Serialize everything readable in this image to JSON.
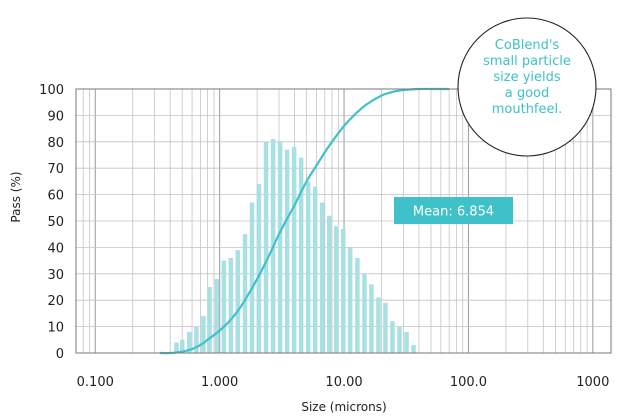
{
  "chart_data": {
    "type": "bar",
    "xlabel": "Size (microns)",
    "ylabel": "Pass (%)",
    "x_scale": "log",
    "xlim": [
      0.07,
      1400
    ],
    "ylim": [
      0,
      100
    ],
    "x_ticks": [
      0.1,
      1,
      10,
      100,
      1000
    ],
    "x_tick_labels": [
      "0.100",
      "1.000",
      "10.00",
      "100.0",
      "1000"
    ],
    "y_ticks": [
      0,
      10,
      20,
      30,
      40,
      50,
      60,
      70,
      80,
      90,
      100
    ],
    "grid": true,
    "accent_color": "#3ec1c8",
    "bar_color": "#a9e0e4",
    "histogram": {
      "x": [
        0.45,
        0.5,
        0.57,
        0.65,
        0.74,
        0.83,
        0.95,
        1.08,
        1.23,
        1.4,
        1.6,
        1.82,
        2.07,
        2.36,
        2.69,
        3.06,
        3.49,
        3.97,
        4.52,
        5.15,
        5.86,
        6.68,
        7.6,
        8.66,
        9.86,
        11.2,
        12.8,
        14.6,
        16.6,
        18.9,
        21.5,
        24.5,
        27.9,
        31.8,
        36.2
      ],
      "values": [
        4,
        5,
        8,
        10,
        14,
        25,
        28,
        35,
        36,
        39,
        45,
        57,
        64,
        80,
        81,
        80,
        77,
        78,
        74,
        65,
        63,
        57,
        52,
        48,
        47,
        40,
        36,
        30,
        26,
        21,
        19,
        12,
        10,
        8,
        3
      ]
    },
    "cumulative": {
      "x": [
        0.33,
        0.4,
        0.5,
        0.6,
        0.7,
        0.8,
        1.0,
        1.25,
        1.5,
        2.0,
        2.5,
        3.0,
        3.5,
        4.0,
        5.0,
        6.0,
        7.0,
        8.0,
        10.0,
        12.0,
        15.0,
        20.0,
        25.0,
        30.0,
        40.0,
        55.0,
        70.0
      ],
      "values": [
        0,
        0,
        0.5,
        1.5,
        3,
        5,
        8.5,
        13,
        18,
        28,
        37,
        45,
        51,
        56,
        65,
        71,
        76,
        80,
        86,
        90,
        94,
        97.5,
        99,
        99.6,
        100,
        100,
        100
      ]
    },
    "annotations": {
      "mean": "Mean: 6.854",
      "callout": [
        "CoBlend's",
        "small particle",
        "size yields",
        "a good",
        "mouthfeel."
      ]
    }
  }
}
